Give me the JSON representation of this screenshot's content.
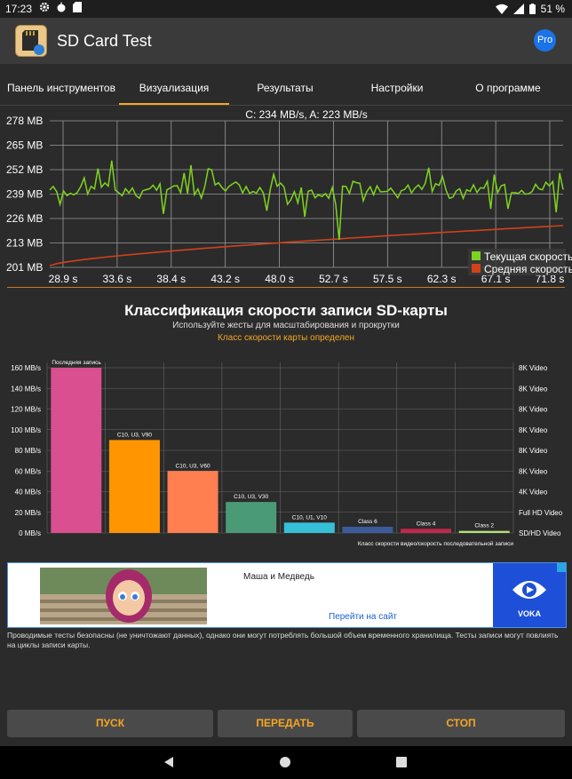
{
  "status_bar": {
    "time": "17:23",
    "battery_text": "51 %",
    "icons": [
      "gear-icon",
      "android-icon",
      "sd-card-icon",
      "wifi-icon",
      "signal-icon",
      "battery-icon"
    ]
  },
  "app_bar": {
    "title": "SD Card Test",
    "pro_label": "Pro"
  },
  "tabs": [
    {
      "label": "Панель инструментов",
      "active": false
    },
    {
      "label": "Визуализация",
      "active": true
    },
    {
      "label": "Результаты",
      "active": false
    },
    {
      "label": "Настройки",
      "active": false
    },
    {
      "label": "О программе",
      "active": false
    }
  ],
  "speed_chart": {
    "header": "C: 234 MB/s, A: 223 MB/s",
    "y_ticks": [
      "278 MB",
      "265 MB",
      "252 MB",
      "239 MB",
      "226 MB",
      "213 MB",
      "201 MB"
    ],
    "x_ticks": [
      "28.9 s",
      "33.6 s",
      "38.4 s",
      "43.2 s",
      "48.0 s",
      "52.7 s",
      "57.5 s",
      "62.3 s",
      "67.1 s",
      "71.8 s"
    ],
    "legend": [
      "Текущая скорость",
      "Средняя скорость"
    ],
    "colors": {
      "current": "#7ed321",
      "average": "#d0421b",
      "grid": "#9a9a9a"
    }
  },
  "class_section": {
    "title": "Классификация скорости записи SD-карты",
    "subtitle": "Используйте жесты для масштабирования и прокрутки",
    "status": "Класс скорости карты определен"
  },
  "chart_data": {
    "type": "bar",
    "categories": [
      "Последняя запись",
      "C10, U3, V90",
      "C10, U3, V60",
      "C10, U3, V30",
      "C10, U1, V10",
      "Class 6",
      "Class 4",
      "Class 2"
    ],
    "values": [
      160,
      90,
      60,
      30,
      10,
      6,
      4,
      2
    ],
    "colors": [
      "#d94f8f",
      "#ff9500",
      "#ff7f50",
      "#4a9a78",
      "#36c0d8",
      "#3b5b9a",
      "#c0284a",
      "#b5e07a"
    ],
    "y_ticks": [
      "0 MB/s",
      "20 MB/s",
      "40 MB/s",
      "60 MB/s",
      "80 MB/s",
      "100 MB/s",
      "120 MB/s",
      "140 MB/s",
      "160 MB/s"
    ],
    "ylim": [
      0,
      160
    ],
    "right_ticks": [
      "SD/HD Video",
      "Full HD Video",
      "4K Video",
      "8K Video",
      "8K Video",
      "8K Video",
      "8K Video",
      "8K Video",
      "8K Video"
    ],
    "xlabel": "Класс скорости видео/скорость последовательной записи",
    "grid": true
  },
  "ad": {
    "title": "Маша и Медведь",
    "link": "Перейти на сайт",
    "brand": "VOKA"
  },
  "disclaimer": "Проводимые тесты безопасны (не уничтожают данных), однако они могут потреблять большой объем временного хранилища. Тесты записи могут повлиять на циклы записи карты.",
  "buttons": {
    "start": "ПУСК",
    "share": "ПЕРЕДАТЬ",
    "stop": "СТОП"
  }
}
